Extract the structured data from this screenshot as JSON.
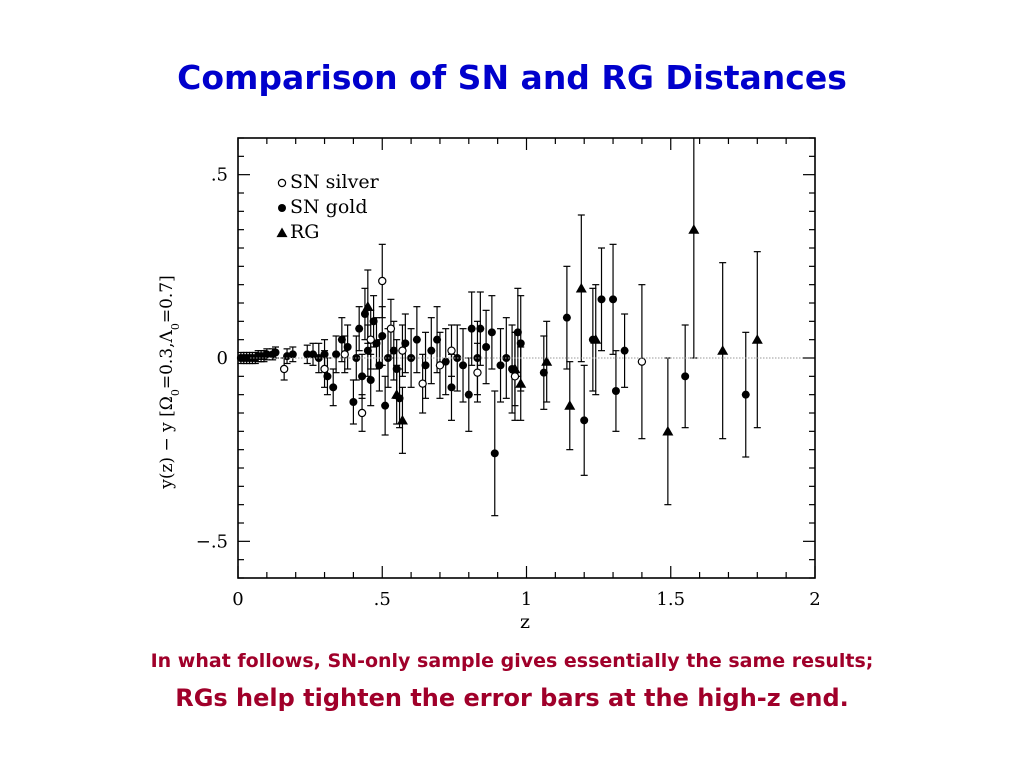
{
  "slide": {
    "title": "Comparison of SN and RG Distances",
    "caption_line1": "In what follows, SN-only sample gives essentially the same results;",
    "caption_line2": "RGs help tighten the error bars at the high-z end."
  },
  "colors": {
    "title": "#0000cc",
    "caption": "#a0002a",
    "ink": "#000000",
    "zero_line": "#999999"
  },
  "chart_data": {
    "type": "scatter",
    "xlabel": "z",
    "ylabel_parts": {
      "main": "y(z)  −  y  [",
      "omega": "Ω",
      "omega_sub": "0",
      "omega_val": "=0.3,",
      "lambda": "Λ",
      "lambda_sub": "0",
      "lambda_val": "=0.7]"
    },
    "xlim": [
      0,
      2
    ],
    "ylim": [
      -0.6,
      0.6
    ],
    "xticks": [
      {
        "v": 0,
        "label": "0"
      },
      {
        "v": 0.5,
        "label": ".5"
      },
      {
        "v": 1,
        "label": "1"
      },
      {
        "v": 1.5,
        "label": "1.5"
      },
      {
        "v": 2,
        "label": "2"
      }
    ],
    "yticks": [
      {
        "v": -0.5,
        "label": "−.5"
      },
      {
        "v": 0,
        "label": "0"
      },
      {
        "v": 0.5,
        "label": ".5"
      }
    ],
    "reference_line": 0,
    "legend_position": "top-left",
    "series": [
      {
        "name": "SN silver",
        "marker": "open-circle",
        "points": [
          {
            "x": 0.16,
            "y": -0.03,
            "e": 0.03
          },
          {
            "x": 0.3,
            "y": -0.03,
            "e": 0.05
          },
          {
            "x": 0.37,
            "y": 0.01,
            "e": 0.05
          },
          {
            "x": 0.43,
            "y": -0.15,
            "e": 0.05
          },
          {
            "x": 0.46,
            "y": 0.05,
            "e": 0.08
          },
          {
            "x": 0.5,
            "y": 0.21,
            "e": 0.1
          },
          {
            "x": 0.53,
            "y": 0.08,
            "e": 0.08
          },
          {
            "x": 0.57,
            "y": 0.02,
            "e": 0.07
          },
          {
            "x": 0.64,
            "y": -0.07,
            "e": 0.08
          },
          {
            "x": 0.7,
            "y": -0.02,
            "e": 0.09
          },
          {
            "x": 0.74,
            "y": 0.02,
            "e": 0.07
          },
          {
            "x": 0.83,
            "y": -0.04,
            "e": 0.08
          },
          {
            "x": 0.96,
            "y": -0.05,
            "e": 0.12
          },
          {
            "x": 1.4,
            "y": -0.01,
            "e": 0.21
          }
        ]
      },
      {
        "name": "SN gold",
        "marker": "filled-circle",
        "points": [
          {
            "x": 0.01,
            "y": 0.0,
            "e": 0.015
          },
          {
            "x": 0.02,
            "y": 0.0,
            "e": 0.015
          },
          {
            "x": 0.03,
            "y": 0.0,
            "e": 0.015
          },
          {
            "x": 0.04,
            "y": 0.0,
            "e": 0.015
          },
          {
            "x": 0.05,
            "y": 0.0,
            "e": 0.015
          },
          {
            "x": 0.06,
            "y": 0.0,
            "e": 0.015
          },
          {
            "x": 0.07,
            "y": 0.005,
            "e": 0.015
          },
          {
            "x": 0.08,
            "y": 0.005,
            "e": 0.015
          },
          {
            "x": 0.09,
            "y": 0.005,
            "e": 0.015
          },
          {
            "x": 0.1,
            "y": 0.01,
            "e": 0.015
          },
          {
            "x": 0.12,
            "y": 0.01,
            "e": 0.015
          },
          {
            "x": 0.13,
            "y": 0.015,
            "e": 0.015
          },
          {
            "x": 0.17,
            "y": 0.005,
            "e": 0.02
          },
          {
            "x": 0.19,
            "y": 0.01,
            "e": 0.02
          },
          {
            "x": 0.24,
            "y": 0.01,
            "e": 0.025
          },
          {
            "x": 0.26,
            "y": 0.01,
            "e": 0.03
          },
          {
            "x": 0.28,
            "y": 0.0,
            "e": 0.04
          },
          {
            "x": 0.3,
            "y": 0.01,
            "e": 0.04
          },
          {
            "x": 0.31,
            "y": -0.05,
            "e": 0.05
          },
          {
            "x": 0.33,
            "y": -0.08,
            "e": 0.05
          },
          {
            "x": 0.34,
            "y": 0.01,
            "e": 0.05
          },
          {
            "x": 0.36,
            "y": 0.05,
            "e": 0.06
          },
          {
            "x": 0.38,
            "y": 0.03,
            "e": 0.06
          },
          {
            "x": 0.4,
            "y": -0.12,
            "e": 0.06
          },
          {
            "x": 0.41,
            "y": 0.0,
            "e": 0.06
          },
          {
            "x": 0.42,
            "y": 0.08,
            "e": 0.06
          },
          {
            "x": 0.43,
            "y": -0.05,
            "e": 0.06
          },
          {
            "x": 0.44,
            "y": 0.12,
            "e": 0.07
          },
          {
            "x": 0.45,
            "y": 0.02,
            "e": 0.07
          },
          {
            "x": 0.46,
            "y": -0.06,
            "e": 0.07
          },
          {
            "x": 0.47,
            "y": 0.1,
            "e": 0.07
          },
          {
            "x": 0.48,
            "y": 0.04,
            "e": 0.07
          },
          {
            "x": 0.49,
            "y": -0.02,
            "e": 0.07
          },
          {
            "x": 0.5,
            "y": 0.06,
            "e": 0.08
          },
          {
            "x": 0.51,
            "y": -0.13,
            "e": 0.08
          },
          {
            "x": 0.52,
            "y": 0.0,
            "e": 0.08
          },
          {
            "x": 0.54,
            "y": 0.02,
            "e": 0.08
          },
          {
            "x": 0.55,
            "y": -0.03,
            "e": 0.08
          },
          {
            "x": 0.56,
            "y": -0.11,
            "e": 0.08
          },
          {
            "x": 0.58,
            "y": 0.04,
            "e": 0.08
          },
          {
            "x": 0.6,
            "y": 0.0,
            "e": 0.08
          },
          {
            "x": 0.62,
            "y": 0.05,
            "e": 0.09
          },
          {
            "x": 0.65,
            "y": -0.02,
            "e": 0.09
          },
          {
            "x": 0.67,
            "y": 0.02,
            "e": 0.09
          },
          {
            "x": 0.69,
            "y": 0.05,
            "e": 0.09
          },
          {
            "x": 0.72,
            "y": -0.01,
            "e": 0.09
          },
          {
            "x": 0.74,
            "y": -0.08,
            "e": 0.09
          },
          {
            "x": 0.76,
            "y": 0.0,
            "e": 0.09
          },
          {
            "x": 0.78,
            "y": -0.02,
            "e": 0.1
          },
          {
            "x": 0.8,
            "y": -0.1,
            "e": 0.1
          },
          {
            "x": 0.81,
            "y": 0.08,
            "e": 0.1
          },
          {
            "x": 0.83,
            "y": 0.0,
            "e": 0.1
          },
          {
            "x": 0.84,
            "y": 0.08,
            "e": 0.1
          },
          {
            "x": 0.86,
            "y": 0.03,
            "e": 0.1
          },
          {
            "x": 0.88,
            "y": 0.07,
            "e": 0.1
          },
          {
            "x": 0.89,
            "y": -0.26,
            "e": 0.17
          },
          {
            "x": 0.91,
            "y": -0.02,
            "e": 0.1
          },
          {
            "x": 0.93,
            "y": 0.0,
            "e": 0.11
          },
          {
            "x": 0.95,
            "y": -0.03,
            "e": 0.12
          },
          {
            "x": 0.97,
            "y": 0.07,
            "e": 0.12
          },
          {
            "x": 0.98,
            "y": 0.04,
            "e": 0.13
          },
          {
            "x": 1.06,
            "y": -0.04,
            "e": 0.1
          },
          {
            "x": 1.14,
            "y": 0.11,
            "e": 0.14
          },
          {
            "x": 1.2,
            "y": -0.17,
            "e": 0.15
          },
          {
            "x": 1.23,
            "y": 0.05,
            "e": 0.14
          },
          {
            "x": 1.26,
            "y": 0.16,
            "e": 0.14
          },
          {
            "x": 1.3,
            "y": 0.16,
            "e": 0.15
          },
          {
            "x": 1.31,
            "y": -0.09,
            "e": 0.11
          },
          {
            "x": 1.34,
            "y": 0.02,
            "e": 0.1
          },
          {
            "x": 1.55,
            "y": -0.05,
            "e": 0.14
          },
          {
            "x": 1.76,
            "y": -0.1,
            "e": 0.17
          }
        ]
      },
      {
        "name": "RG",
        "marker": "filled-triangle",
        "points": [
          {
            "x": 0.45,
            "y": 0.14,
            "e": 0.1
          },
          {
            "x": 0.55,
            "y": -0.1,
            "e": 0.08
          },
          {
            "x": 0.57,
            "y": -0.17,
            "e": 0.09
          },
          {
            "x": 0.96,
            "y": -0.03,
            "e": 0.1
          },
          {
            "x": 0.98,
            "y": -0.07,
            "e": 0.1
          },
          {
            "x": 1.07,
            "y": -0.01,
            "e": 0.11
          },
          {
            "x": 1.15,
            "y": -0.13,
            "e": 0.12
          },
          {
            "x": 1.19,
            "y": 0.19,
            "e": 0.2
          },
          {
            "x": 1.24,
            "y": 0.05,
            "e": 0.15
          },
          {
            "x": 1.49,
            "y": -0.2,
            "e": 0.2
          },
          {
            "x": 1.58,
            "y": 0.35,
            "e": 0.35
          },
          {
            "x": 1.68,
            "y": 0.02,
            "e": 0.24
          },
          {
            "x": 1.8,
            "y": 0.05,
            "e": 0.24
          }
        ]
      }
    ]
  }
}
